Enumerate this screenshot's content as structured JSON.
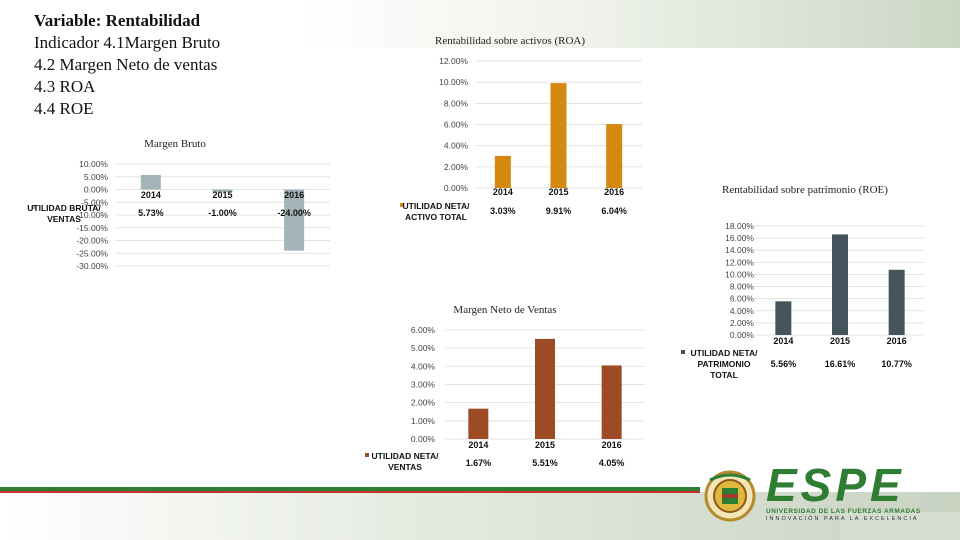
{
  "heading": {
    "variable": "Variable: Rentabilidad",
    "lines": [
      "Indicador 4.1Margen Bruto",
      "4.2 Margen Neto de ventas",
      "4.3 ROA",
      "4.4 ROE"
    ]
  },
  "colors": {
    "gross": "#a2b4b8",
    "roa": "#d4880f",
    "net": "#9c4b24",
    "roe": "#44545c"
  },
  "logo": {
    "name": "ESPE",
    "subtitle": "UNIVERSIDAD DE LAS FUERZAS ARMADAS",
    "tagline": "INNOVACIÓN PARA LA EXCELENCIA"
  },
  "chart_data": [
    {
      "id": "gross",
      "type": "bar",
      "title": "Margen Bruto",
      "categories": [
        "2014",
        "2015",
        "2016"
      ],
      "series": [
        {
          "name": "UTILIDAD BRUTA/ VENTAS",
          "values": [
            5.73,
            -1.0,
            -24.0
          ],
          "labels": [
            "5.73%",
            "-1.00%",
            "-24.00%"
          ]
        }
      ],
      "ylim": [
        -30,
        10
      ],
      "yticks": [
        "10.00%",
        "5.00%",
        "0.00%",
        "-5.00%",
        "-10.00%",
        "-15.00%",
        "-20.00%",
        "-25.00%",
        "-30.00%"
      ],
      "legend": "UTILIDAD BRUTA/ VENTAS"
    },
    {
      "id": "roa",
      "type": "bar",
      "title": "Rentabilidad sobre activos (ROA)",
      "categories": [
        "2014",
        "2015",
        "2016"
      ],
      "series": [
        {
          "name": "UTILIDAD NETA/ ACTIVO TOTAL",
          "values": [
            3.03,
            9.91,
            6.04
          ],
          "labels": [
            "3.03%",
            "9.91%",
            "6.04%"
          ]
        }
      ],
      "ylim": [
        0,
        12
      ],
      "yticks": [
        "12.00%",
        "10.00%",
        "8.00%",
        "6.00%",
        "4.00%",
        "2.00%",
        "0.00%"
      ],
      "legend": "UTILIDAD NETA/ ACTIVO TOTAL"
    },
    {
      "id": "net",
      "type": "bar",
      "title": "Margen Neto de Ventas",
      "categories": [
        "2014",
        "2015",
        "2016"
      ],
      "series": [
        {
          "name": "UTILIDAD NETA/ VENTAS",
          "values": [
            1.67,
            5.51,
            4.05
          ],
          "labels": [
            "1.67%",
            "5.51%",
            "4.05%"
          ]
        }
      ],
      "ylim": [
        0,
        6
      ],
      "yticks": [
        "6.00%",
        "5.00%",
        "4.00%",
        "3.00%",
        "2.00%",
        "1.00%",
        "0.00%"
      ],
      "legend": "UTILIDAD NETA/ VENTAS"
    },
    {
      "id": "roe",
      "type": "bar",
      "title": "Rentabilidad sobre patrimonio (ROE)",
      "categories": [
        "2014",
        "2015",
        "2016"
      ],
      "series": [
        {
          "name": "UTILIDAD NETA/ PATRIMONIO TOTAL",
          "values": [
            5.56,
            16.61,
            10.77
          ],
          "labels": [
            "5.56%",
            "16.61%",
            "10.77%"
          ]
        }
      ],
      "ylim": [
        0,
        18
      ],
      "yticks": [
        "18.00%",
        "16.00%",
        "14.00%",
        "12.00%",
        "10.00%",
        "8.00%",
        "6.00%",
        "4.00%",
        "2.00%",
        "0.00%"
      ],
      "legend": "UTILIDAD NETA/ PATRIMONIO TOTAL"
    }
  ]
}
